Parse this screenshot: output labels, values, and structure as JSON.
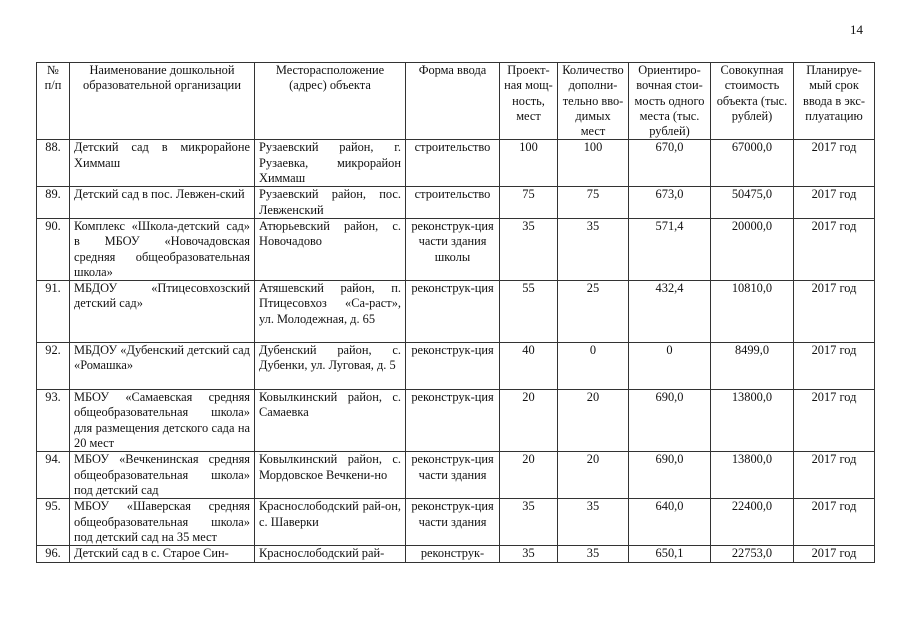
{
  "page_number": "14",
  "headers": [
    "№ п/п",
    "Наименование дошкольной образовательной организации",
    "Месторасположение (адрес) объекта",
    "Форма ввода",
    "Проект-ная мощ-ность, мест",
    "Количество дополни-тельно вво-димых мест",
    "Ориентиро-вочная стои-мость одного места (тыс. рублей)",
    "Совокупная стоимость объекта (тыс. рублей)",
    "Планируе-мый срок ввода в экс-плуатацию"
  ],
  "rows": [
    {
      "no": "88.",
      "name": "Детский сад в микрорайоне Химмаш",
      "address": "Рузаевский район, г. Рузаевка, микрорайон Химмаш",
      "form": "строительство",
      "capacity": "100",
      "added": "100",
      "unit_cost": "670,0",
      "total_cost": "67000,0",
      "term": "2017 год"
    },
    {
      "no": "89.",
      "name": "Детский сад в пос. Левжен-ский",
      "address": "Рузаевский район, пос. Левженский",
      "form": "строительство",
      "capacity": "75",
      "added": "75",
      "unit_cost": "673,0",
      "total_cost": "50475,0",
      "term": "2017 год"
    },
    {
      "no": "90.",
      "name": "Комплекс «Школа-детский сад» в МБОУ «Новочадовская средняя общеобразовательная школа»",
      "address": "Атюрьевский район, с. Новочадово",
      "form": "реконструк-ция части здания школы",
      "capacity": "35",
      "added": "35",
      "unit_cost": "571,4",
      "total_cost": "20000,0",
      "term": "2017 год"
    },
    {
      "no": "91.",
      "name": "МБДОУ «Птицесовхозский детский сад»",
      "address": "Атяшевский район, п. Птицесовхоз «Са-раст», ул. Молодежная, д. 65",
      "form": "реконструк-ция",
      "capacity": "55",
      "added": "25",
      "unit_cost": "432,4",
      "total_cost": "10810,0",
      "term": "2017 год"
    },
    {
      "no": "92.",
      "name": "МБДОУ «Дубенский детский сад «Ромашка»",
      "address": "Дубенский район, с. Дубенки, ул. Луговая, д. 5",
      "form": "реконструк-ция",
      "capacity": "40",
      "added": "0",
      "unit_cost": "0",
      "total_cost": "8499,0",
      "term": "2017 год"
    },
    {
      "no": "93.",
      "name": "МБОУ «Самаевская средняя общеобразовательная школа» для размещения детского сада на 20 мест",
      "address": "Ковылкинский район, с. Самаевка",
      "form": "реконструк-ция",
      "capacity": "20",
      "added": "20",
      "unit_cost": "690,0",
      "total_cost": "13800,0",
      "term": "2017 год"
    },
    {
      "no": "94.",
      "name": "МБОУ «Вечкенинская средняя общеобразовательная школа» под детский сад",
      "address": "Ковылкинский район, с. Мордовское Вечкени-но",
      "form": "реконструк-ция части здания",
      "capacity": "20",
      "added": "20",
      "unit_cost": "690,0",
      "total_cost": "13800,0",
      "term": "2017 год"
    },
    {
      "no": "95.",
      "name": "МБОУ «Шаверская средняя общеобразовательная школа» под детский сад на 35 мест",
      "address": "Краснослободский рай-он, с. Шаверки",
      "form": "реконструк-ция части здания",
      "capacity": "35",
      "added": "35",
      "unit_cost": "640,0",
      "total_cost": "22400,0",
      "term": "2017 год"
    },
    {
      "no": "96.",
      "name": "Детский сад в с. Старое Син-",
      "address": "Краснослободский рай-",
      "form": "реконструк-",
      "capacity": "35",
      "added": "35",
      "unit_cost": "650,1",
      "total_cost": "22753,0",
      "term": "2017 год"
    }
  ]
}
